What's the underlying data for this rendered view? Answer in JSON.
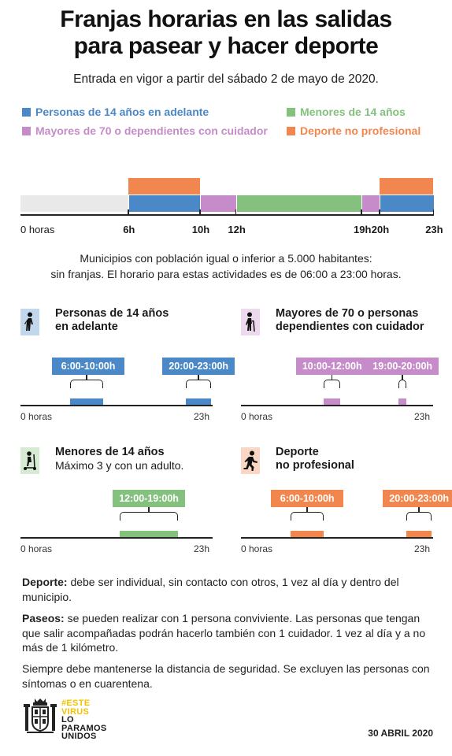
{
  "title_line1": "Franjas horarias en las salidas",
  "title_line2": "para pasear y hacer deporte",
  "subtitle": "Entrada en vigor a partir del sábado 2 de mayo de 2020.",
  "colors": {
    "adults": "#4a88c7",
    "elderly": "#c58cc9",
    "minors": "#84c17e",
    "sport": "#f1874e"
  },
  "legend": [
    {
      "label": "Personas de 14 años en adelante",
      "color": "#4a88c7"
    },
    {
      "label": "Menores de 14 años",
      "color": "#84c17e"
    },
    {
      "label": "Mayores de 70 o dependientes con cuidador",
      "color": "#c58cc9"
    },
    {
      "label": "Deporte no profesional",
      "color": "#f1874e"
    }
  ],
  "timeline": {
    "start_label": "0 horas",
    "ticks": [
      {
        "hour": 6,
        "label": "6h"
      },
      {
        "hour": 10,
        "label": "10h"
      },
      {
        "hour": 12,
        "label": "12h"
      },
      {
        "hour": 19,
        "label": "19h"
      },
      {
        "hour": 20,
        "label": "20h"
      },
      {
        "hour": 23,
        "label": "23h"
      }
    ],
    "segments": [
      {
        "group": "adults",
        "from": 6,
        "to": 10,
        "row": "bottom"
      },
      {
        "group": "sport",
        "from": 6,
        "to": 10,
        "row": "top"
      },
      {
        "group": "elderly",
        "from": 10,
        "to": 12,
        "row": "bottom"
      },
      {
        "group": "minors",
        "from": 12,
        "to": 19,
        "row": "bottom"
      },
      {
        "group": "elderly",
        "from": 19,
        "to": 20,
        "row": "bottom"
      },
      {
        "group": "adults",
        "from": 20,
        "to": 23,
        "row": "bottom"
      },
      {
        "group": "sport",
        "from": 20,
        "to": 23,
        "row": "top"
      }
    ]
  },
  "note_line1": "Municipios con población igual o inferior a 5.000 habitantes:",
  "note_line2": "sin franjas. El horario para estas actividades es de 06:00 a 23:00 horas.",
  "panels": [
    {
      "id": "adults",
      "icon": "walking-person-icon",
      "title_line1": "Personas de 14 años",
      "title_line2": "en adelante",
      "subtitle": "",
      "start_label": "0 horas",
      "end_label": "23h",
      "ranges": [
        {
          "from": 6,
          "to": 10,
          "label": "6:00-10:00h"
        },
        {
          "from": 20,
          "to": 23,
          "label": "20:00-23:00h"
        }
      ]
    },
    {
      "id": "elderly",
      "icon": "elderly-person-icon",
      "title_line1": "Mayores de 70 o personas",
      "title_line2": "dependientes con cuidador",
      "subtitle": "",
      "start_label": "0 horas",
      "end_label": "23h",
      "ranges": [
        {
          "from": 10,
          "to": 12,
          "label": "10:00-12:00h"
        },
        {
          "from": 19,
          "to": 20,
          "label": "19:00-20:00h"
        }
      ]
    },
    {
      "id": "minors",
      "icon": "scooter-child-icon",
      "title_line1": "Menores de 14 años",
      "title_line2": "",
      "subtitle": "Máximo 3 y con un adulto.",
      "start_label": "0 horas",
      "end_label": "23h",
      "ranges": [
        {
          "from": 12,
          "to": 19,
          "label": "12:00-19:00h"
        }
      ]
    },
    {
      "id": "sport",
      "icon": "running-person-icon",
      "title_line1": "Deporte",
      "title_line2": "no profesional",
      "subtitle": "",
      "start_label": "0 horas",
      "end_label": "23h",
      "ranges": [
        {
          "from": 6,
          "to": 10,
          "label": "6:00-10:00h"
        },
        {
          "from": 20,
          "to": 23,
          "label": "20:00-23:00h"
        }
      ]
    }
  ],
  "paragraphs": [
    {
      "bold": "Deporte:",
      "text": " debe ser individual, sin contacto con otros, 1 vez al día y dentro del municipio."
    },
    {
      "bold": "Paseos:",
      "text": " se pueden realizar con 1 persona conviviente. Las personas que tengan que salir acompañadas podrán hacerlo también con 1 cuidador. 1 vez al día y a no más de 1 kilómetro."
    },
    {
      "bold": "",
      "text": "Siempre debe mantenerse la distancia de seguridad. Se excluyen las personas con síntomas o en cuarentena."
    }
  ],
  "logo": {
    "line1": "#ESTE",
    "line2": "VIRUS",
    "line3": "LO",
    "line4": "PARAMOS",
    "line5": "UNIDOS",
    "accent_color": "#f2c200"
  },
  "date": "30 ABRIL 2020"
}
